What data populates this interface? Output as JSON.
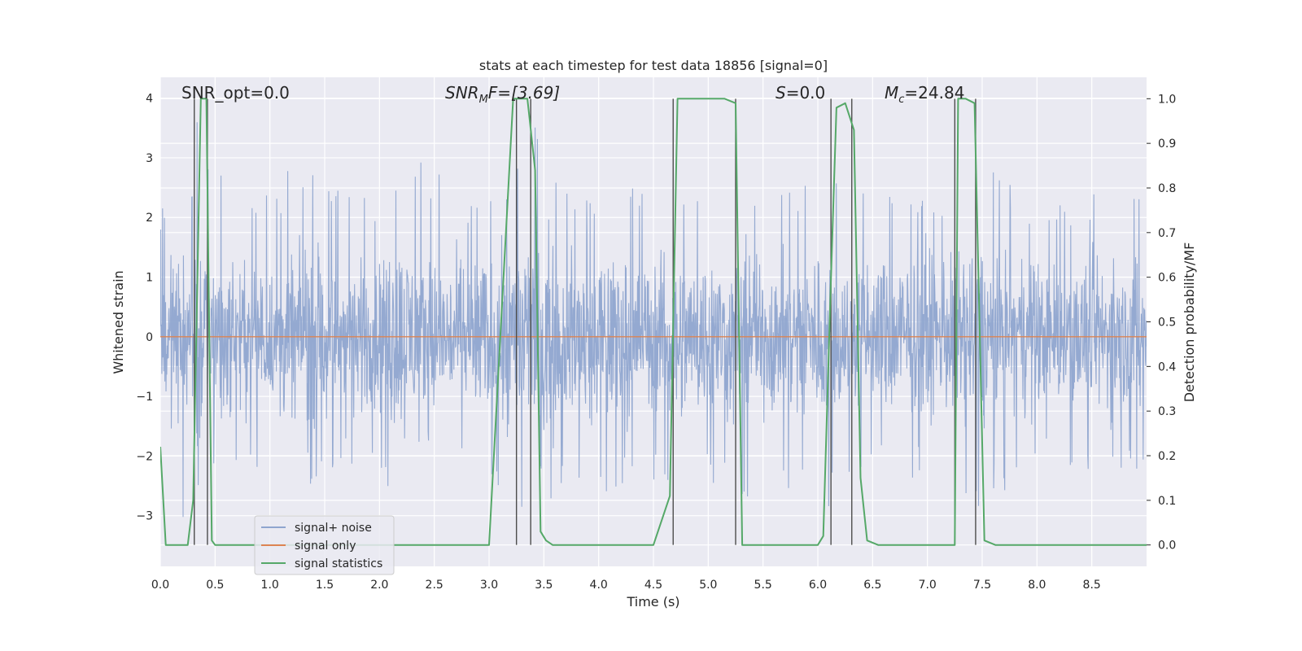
{
  "chart_data": {
    "type": "line",
    "title": "stats at each timestep for test data 18856 [signal=0]",
    "xlabel": "Time (s)",
    "ylabel": "Whitened strain",
    "y2label": "Detection probability/MF",
    "xlim": [
      0.0,
      9.0
    ],
    "ylim": [
      -3.85,
      4.35
    ],
    "y2lim": [
      -0.048,
      1.048
    ],
    "x_ticks": [
      "0.0",
      "0.5",
      "1.0",
      "1.5",
      "2.0",
      "2.5",
      "3.0",
      "3.5",
      "4.0",
      "4.5",
      "5.0",
      "5.5",
      "6.0",
      "6.5",
      "7.0",
      "7.5",
      "8.0",
      "8.5"
    ],
    "y_ticks": [
      "4",
      "3",
      "2",
      "1",
      "0",
      "−1",
      "−2",
      "−3"
    ],
    "y2_ticks": [
      "1.0",
      "0.9",
      "0.8",
      "0.7",
      "0.6",
      "0.5",
      "0.4",
      "0.3",
      "0.2",
      "0.1",
      "0.0"
    ],
    "grid": true,
    "legend_position": "lower-left",
    "legend": [
      "signal+ noise",
      "signal only",
      "signal statistics"
    ],
    "annotations": {
      "snr_opt": "SNR_opt=0.0",
      "snr_mf": "SNR",
      "snr_mf_sub": "M",
      "snr_mf_rest": "F=[3.69]",
      "s_sym": "S",
      "s_rest": "=0.0",
      "mc_sym": "M",
      "mc_sub": "c",
      "mc_rest": "=24.84"
    },
    "colors": {
      "noise": "#8fa5cf",
      "signal_only": "#dd8452",
      "statistics": "#55a868",
      "vlines": "#4d4d4d",
      "axes_bg": "#eaeaf2",
      "grid": "#ffffff"
    },
    "series": [
      {
        "name": "signal+ noise",
        "axis": "left",
        "envelope": {
          "x": [
            0.0,
            0.12,
            0.25,
            0.34,
            0.5,
            0.7,
            1.0,
            1.3,
            1.6,
            1.9,
            2.2,
            2.6,
            3.0,
            3.4,
            3.7,
            4.0,
            4.4,
            4.75,
            5.0,
            5.35,
            5.6,
            6.0,
            6.4,
            6.8,
            7.2,
            7.5,
            7.9,
            8.3,
            8.6,
            9.0
          ],
          "max": [
            2.1,
            2.8,
            2.2,
            4.1,
            3.0,
            2.2,
            2.4,
            3.2,
            2.6,
            2.3,
            3.4,
            2.7,
            2.4,
            4.0,
            2.6,
            2.5,
            2.6,
            2.5,
            2.8,
            2.9,
            2.4,
            2.7,
            2.6,
            2.8,
            2.6,
            2.9,
            2.5,
            2.4,
            2.6,
            2.4
          ],
          "min": [
            -2.2,
            -2.6,
            -3.4,
            -2.5,
            -2.6,
            -2.1,
            -2.3,
            -2.6,
            -2.2,
            -2.4,
            -3.2,
            -2.3,
            -2.7,
            -3.0,
            -2.5,
            -2.9,
            -2.4,
            -2.6,
            -2.5,
            -2.8,
            -2.6,
            -3.1,
            -2.3,
            -2.4,
            -2.5,
            -3.0,
            -2.3,
            -2.2,
            -2.5,
            -2.4
          ]
        }
      },
      {
        "name": "signal only",
        "axis": "left",
        "x": [
          0.0,
          9.0
        ],
        "y": [
          0.0,
          0.0
        ]
      },
      {
        "name": "signal statistics",
        "axis": "right",
        "x": [
          0.0,
          0.05,
          0.25,
          0.3,
          0.37,
          0.42,
          0.47,
          0.5,
          1.0,
          2.0,
          3.0,
          3.22,
          3.27,
          3.35,
          3.42,
          3.47,
          3.52,
          3.58,
          3.65,
          4.0,
          4.4,
          4.5,
          4.65,
          4.72,
          5.0,
          5.15,
          5.25,
          5.31,
          5.6,
          6.0,
          6.05,
          6.12,
          6.17,
          6.25,
          6.33,
          6.39,
          6.45,
          6.55,
          7.0,
          7.25,
          7.28,
          7.35,
          7.43,
          7.52,
          7.62,
          7.7,
          8.0,
          9.0
        ],
        "y": [
          0.22,
          0.0,
          0.0,
          0.1,
          1.0,
          1.0,
          0.01,
          0.0,
          0.0,
          0.0,
          0.0,
          1.0,
          1.0,
          1.0,
          0.84,
          0.03,
          0.01,
          0.0,
          0.0,
          0.0,
          0.0,
          0.0,
          0.11,
          1.0,
          1.0,
          1.0,
          0.99,
          0.0,
          0.0,
          0.0,
          0.02,
          0.6,
          0.98,
          0.99,
          0.93,
          0.15,
          0.01,
          0.0,
          0.0,
          0.0,
          1.0,
          1.0,
          0.99,
          0.01,
          0.0,
          0.0,
          0.0,
          0.0
        ]
      }
    ],
    "vlines": [
      0.31,
      0.43,
      3.25,
      3.38,
      4.68,
      5.25,
      6.12,
      6.31,
      7.25,
      7.44
    ]
  }
}
